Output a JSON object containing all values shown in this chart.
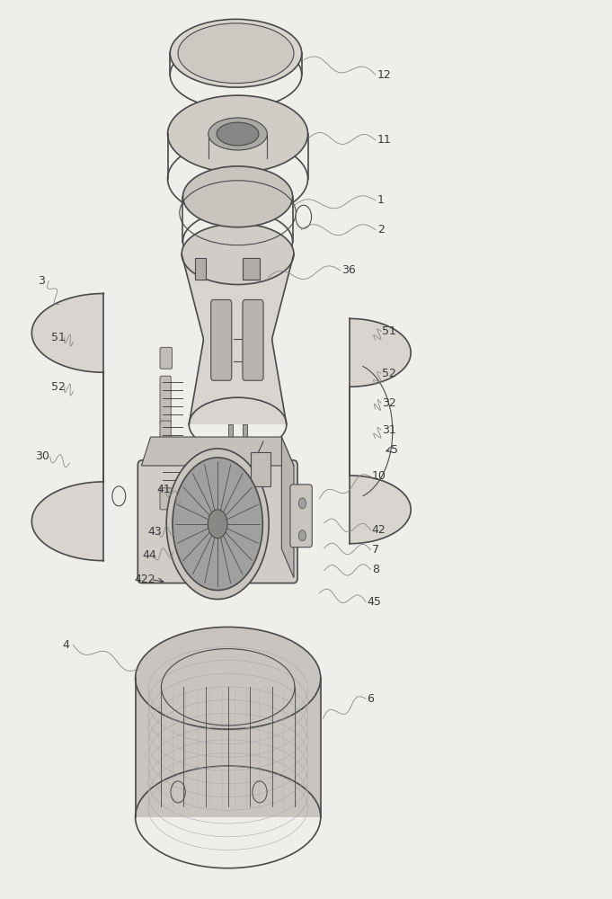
{
  "title": "",
  "background_color": "#f0eeeb",
  "line_color": "#4a4a4a",
  "text_color": "#3a3a3a",
  "figure_width": 6.81,
  "figure_height": 10.0,
  "dpi": 100
}
